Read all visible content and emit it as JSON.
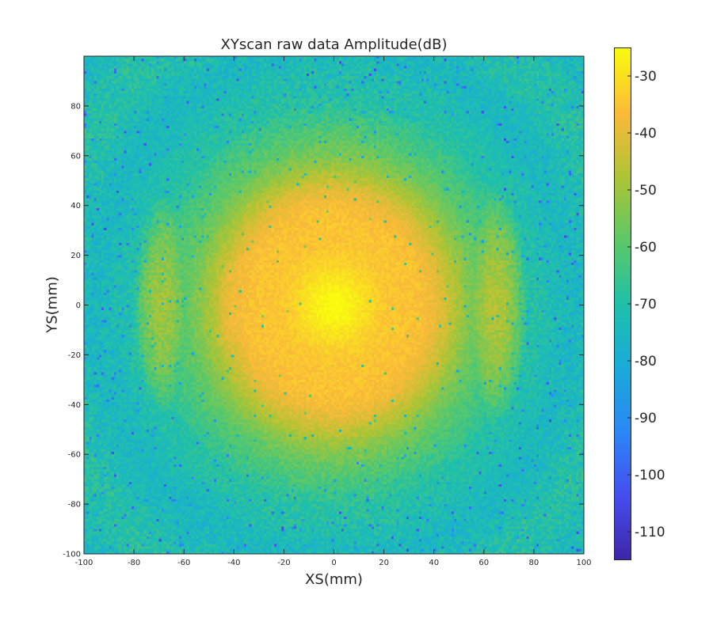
{
  "chart_data": {
    "type": "heatmap",
    "title": "XYscan raw data Amplitude(dB)",
    "xlabel": "XS(mm)",
    "ylabel": "YS(mm)",
    "xlim": [
      -100,
      100
    ],
    "ylim": [
      -100,
      100
    ],
    "x_ticks": [
      "-100",
      "-80",
      "-60",
      "-40",
      "-20",
      "0",
      "20",
      "40",
      "60",
      "80",
      "100"
    ],
    "y_ticks": [
      "-100",
      "-80",
      "-60",
      "-40",
      "-20",
      "0",
      "20",
      "40",
      "60",
      "80"
    ],
    "colorbar": {
      "range": [
        -115,
        -25
      ],
      "ticks": [
        "-30",
        "-40",
        "-50",
        "-60",
        "-70",
        "-80",
        "-90",
        "-100",
        "-110"
      ],
      "colormap": "parula"
    },
    "peak": {
      "x": 0,
      "y": 0,
      "value": -27
    },
    "side_lobes": [
      {
        "x": -40,
        "y": 0,
        "value": -40
      },
      {
        "x": 40,
        "y": 0,
        "value": -42
      },
      {
        "x": -67,
        "y": 0,
        "value": -50
      },
      {
        "x": 63,
        "y": 0,
        "value": -46
      }
    ],
    "background_level": -72,
    "colors": {
      "low": "#3e26a8",
      "mid": "#1fb7b5",
      "high": "#f9fb0e"
    }
  }
}
